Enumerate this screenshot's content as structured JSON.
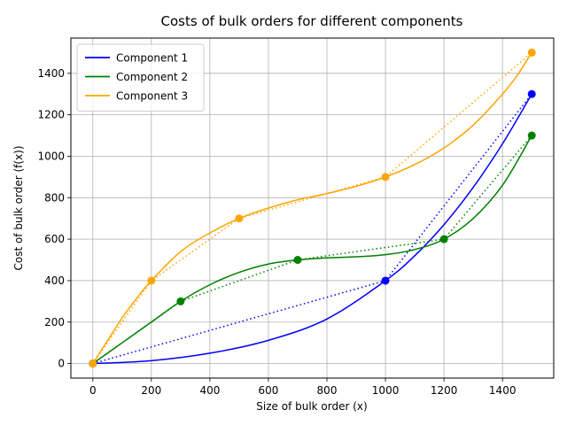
{
  "chart_data": {
    "type": "line",
    "title": "Costs of bulk orders for different components",
    "xlabel": "Size of bulk order (x)",
    "ylabel": "Cost of bulk order (f(x))",
    "xlim": [
      -75,
      1575
    ],
    "ylim": [
      -70,
      1570
    ],
    "xticks": [
      0,
      200,
      400,
      600,
      800,
      1000,
      1200,
      1400
    ],
    "yticks": [
      0,
      200,
      400,
      600,
      800,
      1000,
      1200,
      1400
    ],
    "grid": true,
    "legend_position": "top-left",
    "series": [
      {
        "name": "Component 1",
        "color": "#0000ff",
        "points": [
          [
            0,
            0
          ],
          [
            1000,
            400
          ],
          [
            1500,
            1300
          ]
        ],
        "curve": [
          [
            0,
            0
          ],
          [
            200,
            14
          ],
          [
            400,
            50
          ],
          [
            600,
            112
          ],
          [
            800,
            215
          ],
          [
            1000,
            400
          ],
          [
            1100,
            520
          ],
          [
            1200,
            670
          ],
          [
            1300,
            850
          ],
          [
            1400,
            1060
          ],
          [
            1500,
            1300
          ]
        ]
      },
      {
        "name": "Component 2",
        "color": "#008000",
        "points": [
          [
            0,
            0
          ],
          [
            300,
            300
          ],
          [
            700,
            500
          ],
          [
            1200,
            600
          ],
          [
            1500,
            1100
          ]
        ],
        "curve": [
          [
            0,
            0
          ],
          [
            100,
            100
          ],
          [
            200,
            200
          ],
          [
            300,
            300
          ],
          [
            400,
            380
          ],
          [
            500,
            440
          ],
          [
            600,
            480
          ],
          [
            700,
            500
          ],
          [
            800,
            510
          ],
          [
            900,
            515
          ],
          [
            1000,
            525
          ],
          [
            1100,
            550
          ],
          [
            1200,
            600
          ],
          [
            1300,
            700
          ],
          [
            1400,
            860
          ],
          [
            1500,
            1100
          ]
        ]
      },
      {
        "name": "Component 3",
        "color": "#ffa500",
        "points": [
          [
            0,
            0
          ],
          [
            200,
            400
          ],
          [
            500,
            700
          ],
          [
            1000,
            900
          ],
          [
            1500,
            1500
          ]
        ],
        "curve": [
          [
            0,
            0
          ],
          [
            50,
            110
          ],
          [
            100,
            220
          ],
          [
            150,
            315
          ],
          [
            200,
            400
          ],
          [
            300,
            540
          ],
          [
            400,
            630
          ],
          [
            500,
            700
          ],
          [
            600,
            750
          ],
          [
            700,
            790
          ],
          [
            800,
            820
          ],
          [
            900,
            855
          ],
          [
            1000,
            900
          ],
          [
            1100,
            960
          ],
          [
            1200,
            1040
          ],
          [
            1300,
            1150
          ],
          [
            1400,
            1300
          ],
          [
            1450,
            1390
          ],
          [
            1500,
            1500
          ]
        ]
      }
    ]
  }
}
